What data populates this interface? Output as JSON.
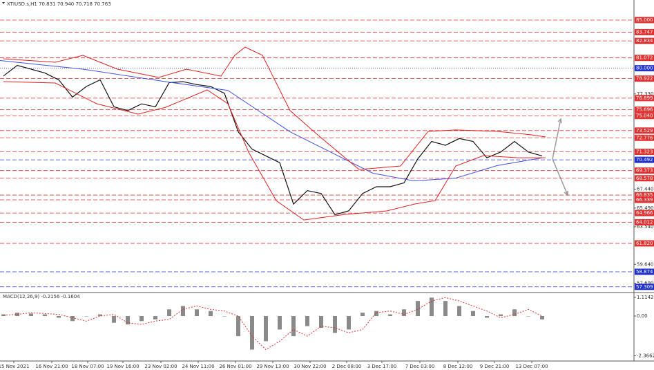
{
  "chart_data": [
    {
      "type": "line",
      "title": "XTIUSD.s,H1  70.831 70.940 70.718 70.763",
      "xlim": [
        -0.25,
        45.65
      ],
      "ylim": [
        56.79,
        87.08
      ],
      "xticks": [
        {
          "value": 0.75,
          "label": "15 Nov 2021"
        },
        {
          "value": 3.5,
          "label": "16 Nov 21:00"
        },
        {
          "value": 6.1,
          "label": "18 Nov 07:00"
        },
        {
          "value": 8.65,
          "label": "19 Nov 16:00"
        },
        {
          "value": 11.4,
          "label": "23 Nov 02:00"
        },
        {
          "value": 14.1,
          "label": "24 Nov 11:00"
        },
        {
          "value": 16.8,
          "label": "26 Nov 01:00"
        },
        {
          "value": 19.5,
          "label": "29 Nov 13:00"
        },
        {
          "value": 22.2,
          "label": "30 Nov 22:00"
        },
        {
          "value": 24.85,
          "label": "2 Dec 08:00"
        },
        {
          "value": 27.4,
          "label": "3 Dec 17:00"
        },
        {
          "value": 30.15,
          "label": "7 Dec 03:00"
        },
        {
          "value": 32.9,
          "label": "8 Dec 12:00"
        },
        {
          "value": 35.55,
          "label": "9 Dec 21:00"
        },
        {
          "value": 38.25,
          "label": "13 Dec 07:00"
        }
      ],
      "yticks": [
        {
          "value": 77.33,
          "label": "77.330"
        },
        {
          "value": 67.44,
          "label": "67.440"
        },
        {
          "value": 65.49,
          "label": "65.490"
        },
        {
          "value": 63.54,
          "label": "63.540"
        },
        {
          "value": 59.64,
          "label": "59.640"
        },
        {
          "value": 57.69,
          "label": "57.690"
        }
      ],
      "levels": [
        {
          "value": 85,
          "label": "85.000",
          "color": "#e03030"
        },
        {
          "value": 83.747,
          "label": "83.747",
          "color": "#e03030"
        },
        {
          "value": 82.834,
          "label": "82.834",
          "color": "#e03030"
        },
        {
          "value": 81.072,
          "label": "81.072",
          "color": "#e03030"
        },
        {
          "value": 80,
          "label": "80.000",
          "color": "#2030d0"
        },
        {
          "value": 78.922,
          "label": "78.922",
          "color": "#e03030"
        },
        {
          "value": 76.899,
          "label": "76.899",
          "color": "#e03030"
        },
        {
          "value": 75.696,
          "label": "75.696",
          "color": "#e03030"
        },
        {
          "value": 75.04,
          "label": "75.040",
          "color": "#e03030"
        },
        {
          "value": 73.529,
          "label": "73.529",
          "color": "#e03030"
        },
        {
          "value": 72.776,
          "label": "72.776",
          "color": "#e03030"
        },
        {
          "value": 71.323,
          "label": "71.323",
          "color": "#e03030"
        },
        {
          "value": 70.492,
          "label": "70.492",
          "color": "#2030d0"
        },
        {
          "value": 69.373,
          "label": "69.373",
          "color": "#e03030"
        },
        {
          "value": 68.578,
          "label": "68.578",
          "color": "#e03030"
        },
        {
          "value": 66.835,
          "label": "66.835",
          "color": "#e03030"
        },
        {
          "value": 66.339,
          "label": "66.339",
          "color": "#e03030"
        },
        {
          "value": 64.966,
          "label": "64.966",
          "color": "#e03030"
        },
        {
          "value": 64.012,
          "label": "64.012",
          "color": "#e03030"
        },
        {
          "value": 61.82,
          "label": "61.820",
          "color": "#e03030"
        },
        {
          "value": 58.874,
          "label": "58.874",
          "color": "#2030d0"
        },
        {
          "value": 57.309,
          "label": "57.309",
          "color": "#2030d0"
        }
      ],
      "series": [
        {
          "color": "#111111",
          "x": [
            0,
            1,
            2,
            3,
            4,
            5,
            6,
            7,
            8,
            9,
            10,
            11,
            12,
            13,
            14,
            15,
            16,
            17,
            18,
            19,
            20,
            21,
            22,
            23,
            24,
            25,
            26,
            27,
            28,
            29,
            30,
            31,
            32,
            33,
            34,
            35,
            36,
            37,
            38,
            39
          ],
          "values": [
            79.2,
            80.3,
            79.9,
            79.5,
            78.8,
            77.0,
            78.1,
            78.8,
            76.0,
            75.6,
            76.3,
            76.0,
            78.5,
            78.6,
            78.3,
            78.1,
            77.4,
            73.4,
            71.6,
            70.9,
            70.2,
            65.9,
            67.3,
            67.0,
            64.8,
            65.2,
            67.0,
            67.7,
            67.7,
            68.1,
            70.6,
            72.4,
            72.0,
            72.7,
            72.4,
            70.7,
            71.3,
            72.4,
            71.3,
            70.9
          ]
        },
        {
          "color": "#4050e0",
          "x": [
            -0.25,
            5.75,
            11.75,
            16.25,
            20.75,
            26.75,
            29.75,
            32.75,
            35.75,
            39
          ],
          "values": [
            80.8,
            79.9,
            78.6,
            77.7,
            73.4,
            69.1,
            68.3,
            68.6,
            69.9,
            70.7
          ]
        },
        {
          "color": "#e02020",
          "x": [
            0,
            3.75,
            5.75,
            8.25,
            11.25,
            13.25,
            15.75,
            16.75,
            17.5,
            18.75,
            20.75,
            22.75,
            25.75,
            28.75,
            30.75,
            32.75,
            35.75,
            38.25,
            39.25
          ],
          "values": [
            80.98,
            80.62,
            81.34,
            79.9,
            79.04,
            79.9,
            79.18,
            81.34,
            82.2,
            81.34,
            75.6,
            73.08,
            69.49,
            69.85,
            73.44,
            73.59,
            73.44,
            73.08,
            72.87
          ]
        },
        {
          "color": "#e02020",
          "x": [
            0,
            3.75,
            6.75,
            9.75,
            11.75,
            14.75,
            16.25,
            17.75,
            19.75,
            21.75,
            24.75,
            27.75,
            29.75,
            31.25,
            32.75,
            34.75,
            37.25,
            39.25
          ],
          "values": [
            78.61,
            78.47,
            76.31,
            75.24,
            75.95,
            77.75,
            76.31,
            71.29,
            66.26,
            64.25,
            64.83,
            65.19,
            65.9,
            66.26,
            69.85,
            70.93,
            70.71,
            70.71
          ]
        }
      ]
    },
    {
      "type": "macd",
      "title": "MACD(12,26,9) -0.2156 -0.1604",
      "xlim": [
        -0.25,
        45.65
      ],
      "ylim": [
        -2.68,
        1.36
      ],
      "yticks": [
        1.1142,
        {
          "value": 0,
          "label": "0.00"
        },
        -2.3662
      ],
      "x": [
        0,
        1,
        2,
        3,
        4,
        5,
        6,
        7,
        8,
        9,
        10,
        11,
        12,
        13,
        14,
        15,
        16,
        17,
        18,
        19,
        20,
        21,
        22,
        23,
        24,
        25,
        26,
        27,
        28,
        29,
        30,
        31,
        32,
        33,
        34,
        35,
        36,
        37,
        38,
        39
      ],
      "values": [
        0.1,
        0.2,
        0.15,
        0.1,
        -0.1,
        -0.3,
        0.0,
        0.1,
        -0.4,
        -0.5,
        -0.3,
        -0.2,
        0.4,
        0.6,
        0.4,
        0.3,
        0.0,
        -1.2,
        -2.0,
        -1.5,
        -0.8,
        -1.2,
        -0.6,
        -0.7,
        -1.0,
        -0.8,
        0.2,
        0.3,
        0.1,
        0.4,
        0.9,
        1.1,
        0.9,
        0.6,
        0.3,
        -0.1,
        0.1,
        0.4,
        0.0,
        -0.2
      ],
      "color": "#8a8a8a",
      "signal": {
        "color": "#e03030",
        "values": [
          0.05,
          0.1,
          0.2,
          0.15,
          0.1,
          -0.1,
          -0.3,
          0.0,
          0.1,
          -0.4,
          -0.5,
          -0.3,
          -0.2,
          0.4,
          0.6,
          0.4,
          0.3,
          0.0,
          -1.2,
          -2.0,
          -1.5,
          -0.8,
          -1.2,
          -0.6,
          -0.7,
          -1.0,
          -0.8,
          0.2,
          0.3,
          0.1,
          0.4,
          0.9,
          1.1,
          0.9,
          0.6,
          0.3,
          -0.1,
          0.1,
          0.4,
          0.0
        ]
      }
    }
  ]
}
